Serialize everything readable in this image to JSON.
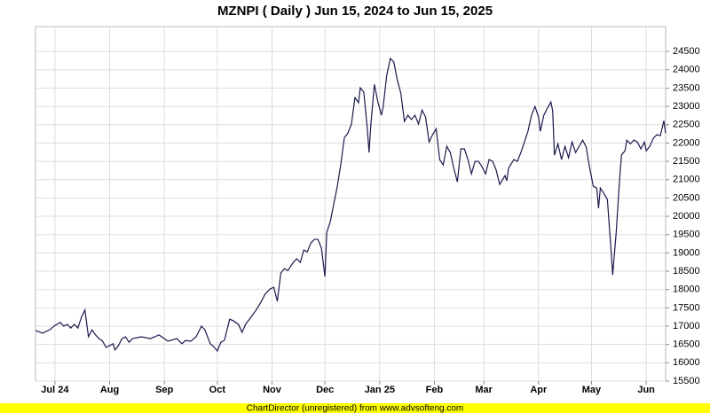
{
  "chart_data": {
    "type": "line",
    "title": "MZNPI ( Daily ) Jun 15, 2024 to Jun 15, 2025",
    "footer": "ChartDirector (unregistered) from www.advsofteng.com",
    "color": "#1a1a4e",
    "grid": true,
    "xlim": [
      "2024-06-20",
      "2025-06-12"
    ],
    "ylim": [
      15500,
      25180
    ],
    "yticks": [
      15500,
      16000,
      16500,
      17000,
      17500,
      18000,
      18500,
      19000,
      19500,
      20000,
      20500,
      21000,
      21500,
      22000,
      22500,
      23000,
      23500,
      24000,
      24500
    ],
    "xticks": [
      {
        "value": "2024-07-01",
        "label": "Jul 24"
      },
      {
        "value": "2024-08-01",
        "label": "Aug"
      },
      {
        "value": "2024-09-01",
        "label": "Sep"
      },
      {
        "value": "2024-10-01",
        "label": "Oct"
      },
      {
        "value": "2024-11-01",
        "label": "Nov"
      },
      {
        "value": "2024-12-01",
        "label": "Dec"
      },
      {
        "value": "2025-01-01",
        "label": "Jan 25"
      },
      {
        "value": "2025-02-01",
        "label": "Feb"
      },
      {
        "value": "2025-03-01",
        "label": "Mar"
      },
      {
        "value": "2025-04-01",
        "label": "Apr"
      },
      {
        "value": "2025-05-01",
        "label": "May"
      },
      {
        "value": "2025-06-01",
        "label": "Jun"
      }
    ],
    "x": [
      "2024-06-20",
      "2024-06-24",
      "2024-06-28",
      "2024-07-01",
      "2024-07-04",
      "2024-07-06",
      "2024-07-08",
      "2024-07-10",
      "2024-07-12",
      "2024-07-14",
      "2024-07-16",
      "2024-07-18",
      "2024-07-20",
      "2024-07-22",
      "2024-07-24",
      "2024-07-26",
      "2024-07-28",
      "2024-07-30",
      "2024-08-01",
      "2024-08-03",
      "2024-08-04",
      "2024-08-06",
      "2024-08-08",
      "2024-08-10",
      "2024-08-12",
      "2024-08-14",
      "2024-08-19",
      "2024-08-24",
      "2024-08-29",
      "2024-09-03",
      "2024-09-08",
      "2024-09-11",
      "2024-09-13",
      "2024-09-16",
      "2024-09-19",
      "2024-09-22",
      "2024-09-24",
      "2024-09-27",
      "2024-09-29",
      "2024-10-01",
      "2024-10-03",
      "2024-10-05",
      "2024-10-08",
      "2024-10-10",
      "2024-10-13",
      "2024-10-15",
      "2024-10-17",
      "2024-10-20",
      "2024-10-23",
      "2024-10-26",
      "2024-10-28",
      "2024-10-31",
      "2024-11-02",
      "2024-11-04",
      "2024-11-06",
      "2024-11-08",
      "2024-11-10",
      "2024-11-13",
      "2024-11-15",
      "2024-11-17",
      "2024-11-19",
      "2024-11-21",
      "2024-11-23",
      "2024-11-25",
      "2024-11-27",
      "2024-11-29",
      "2024-12-01",
      "2024-12-02",
      "2024-12-04",
      "2024-12-06",
      "2024-12-08",
      "2024-12-10",
      "2024-12-12",
      "2024-12-14",
      "2024-12-16",
      "2024-12-18",
      "2024-12-20",
      "2024-12-21",
      "2024-12-23",
      "2024-12-25",
      "2024-12-26",
      "2024-12-27",
      "2024-12-29",
      "2024-12-31",
      "2025-01-02",
      "2025-01-03",
      "2025-01-05",
      "2025-01-07",
      "2025-01-09",
      "2025-01-11",
      "2025-01-13",
      "2025-01-15",
      "2025-01-17",
      "2025-01-19",
      "2025-01-21",
      "2025-01-23",
      "2025-01-25",
      "2025-01-27",
      "2025-01-29",
      "2025-01-31",
      "2025-02-02",
      "2025-02-04",
      "2025-02-06",
      "2025-02-08",
      "2025-02-10",
      "2025-02-12",
      "2025-02-14",
      "2025-02-16",
      "2025-02-18",
      "2025-02-20",
      "2025-02-22",
      "2025-02-24",
      "2025-02-26",
      "2025-02-28",
      "2025-03-02",
      "2025-03-04",
      "2025-03-06",
      "2025-03-08",
      "2025-03-10",
      "2025-03-13",
      "2025-03-14",
      "2025-03-15",
      "2025-03-18",
      "2025-03-20",
      "2025-03-22",
      "2025-03-24",
      "2025-03-26",
      "2025-03-28",
      "2025-03-30",
      "2025-04-01",
      "2025-04-02",
      "2025-04-04",
      "2025-04-06",
      "2025-04-08",
      "2025-04-09",
      "2025-04-10",
      "2025-04-12",
      "2025-04-14",
      "2025-04-16",
      "2025-04-18",
      "2025-04-20",
      "2025-04-22",
      "2025-04-24",
      "2025-04-26",
      "2025-04-28",
      "2025-04-30",
      "2025-05-02",
      "2025-05-04",
      "2025-05-05",
      "2025-05-06",
      "2025-05-08",
      "2025-05-10",
      "2025-05-12",
      "2025-05-13",
      "2025-05-15",
      "2025-05-17",
      "2025-05-18",
      "2025-05-20",
      "2025-05-21",
      "2025-05-23",
      "2025-05-25",
      "2025-05-27",
      "2025-05-29",
      "2025-05-31",
      "2025-06-01",
      "2025-06-03",
      "2025-06-05",
      "2025-06-07",
      "2025-06-09",
      "2025-06-11",
      "2025-06-12"
    ],
    "values": [
      16880,
      16810,
      16900,
      17020,
      17100,
      17000,
      17050,
      16950,
      17050,
      16950,
      17240,
      17440,
      16710,
      16900,
      16760,
      16660,
      16590,
      16420,
      16470,
      16520,
      16350,
      16470,
      16660,
      16710,
      16560,
      16660,
      16710,
      16660,
      16760,
      16590,
      16660,
      16520,
      16610,
      16590,
      16710,
      17000,
      16900,
      16520,
      16440,
      16320,
      16560,
      16610,
      17190,
      17150,
      17050,
      16830,
      17050,
      17240,
      17440,
      17680,
      17870,
      18020,
      18060,
      17680,
      18450,
      18570,
      18520,
      18740,
      18840,
      18740,
      19080,
      19030,
      19270,
      19370,
      19370,
      19130,
      18350,
      19560,
      19850,
      20340,
      20820,
      21430,
      22150,
      22270,
      22520,
      23240,
      23100,
      23510,
      23390,
      22390,
      21740,
      22520,
      23600,
      23120,
      22760,
      23000,
      23850,
      24310,
      24210,
      23720,
      23360,
      22590,
      22760,
      22640,
      22760,
      22520,
      22900,
      22710,
      22030,
      22230,
      22390,
      21550,
      21400,
      21910,
      21740,
      21310,
      20940,
      21840,
      21840,
      21550,
      21160,
      21500,
      21500,
      21350,
      21160,
      21550,
      21500,
      21260,
      20870,
      21110,
      20970,
      21310,
      21550,
      21500,
      21740,
      22030,
      22320,
      22760,
      23000,
      22710,
      22320,
      22760,
      22950,
      23120,
      22880,
      21670,
      21980,
      21550,
      21910,
      21600,
      22030,
      21740,
      21910,
      22080,
      21890,
      21310,
      20820,
      20770,
      20220,
      20770,
      20630,
      20460,
      19130,
      18400,
      19560,
      21060,
      21670,
      21790,
      22080,
      21980,
      22080,
      22030,
      21840,
      22030,
      21790,
      21910,
      22130,
      22230,
      22200,
      22610,
      22270
    ]
  }
}
